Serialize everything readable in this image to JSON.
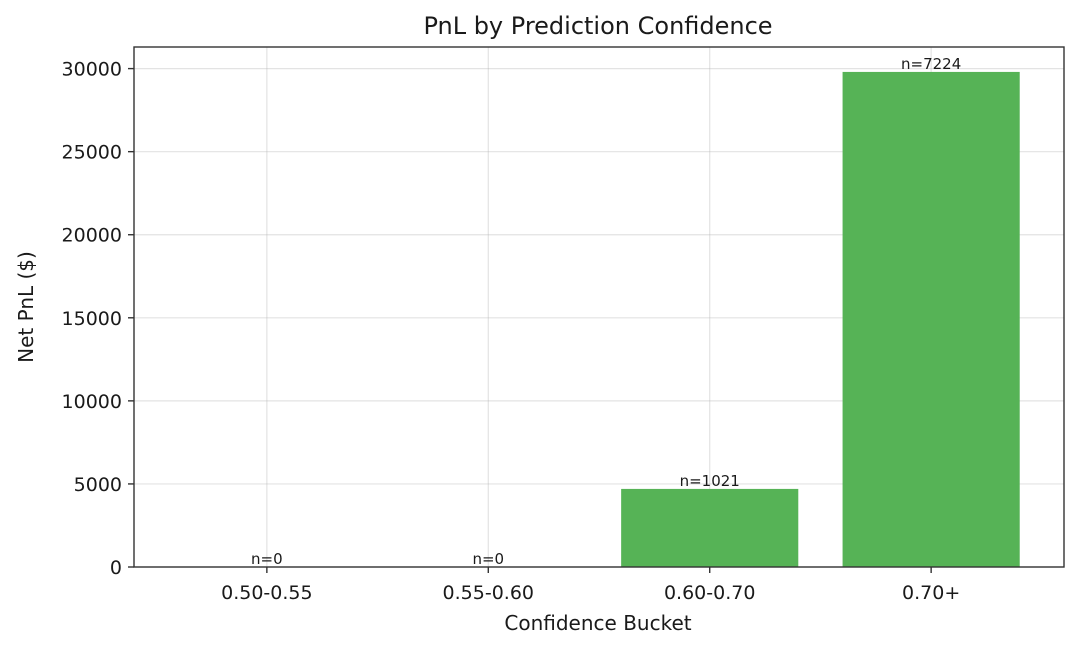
{
  "chart_data": {
    "type": "bar",
    "title": "PnL by Prediction Confidence",
    "xlabel": "Confidence Bucket",
    "ylabel": "Net PnL ($)",
    "categories": [
      "0.50-0.55",
      "0.55-0.60",
      "0.60-0.70",
      "0.70+"
    ],
    "values": [
      0,
      0,
      4700,
      29800
    ],
    "bar_labels": [
      "n=0",
      "n=0",
      "n=1021",
      "n=7224"
    ],
    "ylim": [
      0,
      31300
    ],
    "yticks": [
      0,
      5000,
      10000,
      15000,
      20000,
      25000,
      30000
    ],
    "grid": true,
    "bar_color": "#56b356"
  }
}
